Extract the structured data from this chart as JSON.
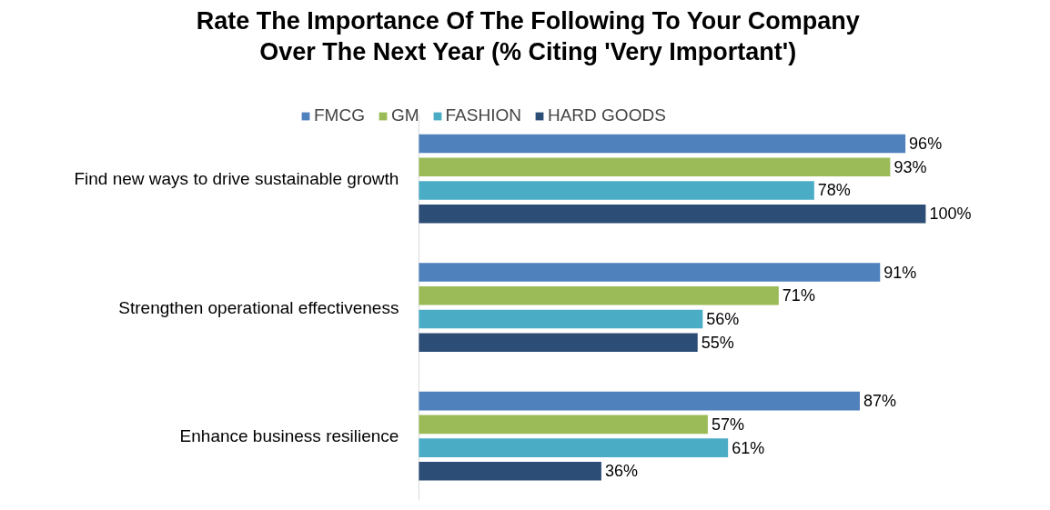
{
  "chart_data": {
    "type": "bar",
    "orientation": "horizontal",
    "title": "Rate The Importance Of The Following To Your Company\nOver The Next Year (% Citing 'Very Important')",
    "categories": [
      "Find new ways to drive sustainable growth",
      "Strengthen operational effectiveness",
      "Enhance business resilience"
    ],
    "series": [
      {
        "name": "FMCG",
        "color": "#4f81bd",
        "values": [
          96,
          91,
          87
        ],
        "value_labels": [
          "96%",
          "91%",
          "87%"
        ]
      },
      {
        "name": "GM",
        "color": "#9bbb59",
        "values": [
          93,
          71,
          57
        ],
        "value_labels": [
          "93%",
          "71%",
          "57%"
        ]
      },
      {
        "name": "FASHION",
        "color": "#4bacc6",
        "values": [
          78,
          56,
          61
        ],
        "value_labels": [
          "78%",
          "56%",
          "61%"
        ]
      },
      {
        "name": "HARD GOODS",
        "color": "#2c4d75",
        "values": [
          100,
          55,
          36
        ],
        "value_labels": [
          "100%",
          "55%",
          "36%"
        ]
      }
    ],
    "legend": "top",
    "grid": false
  }
}
